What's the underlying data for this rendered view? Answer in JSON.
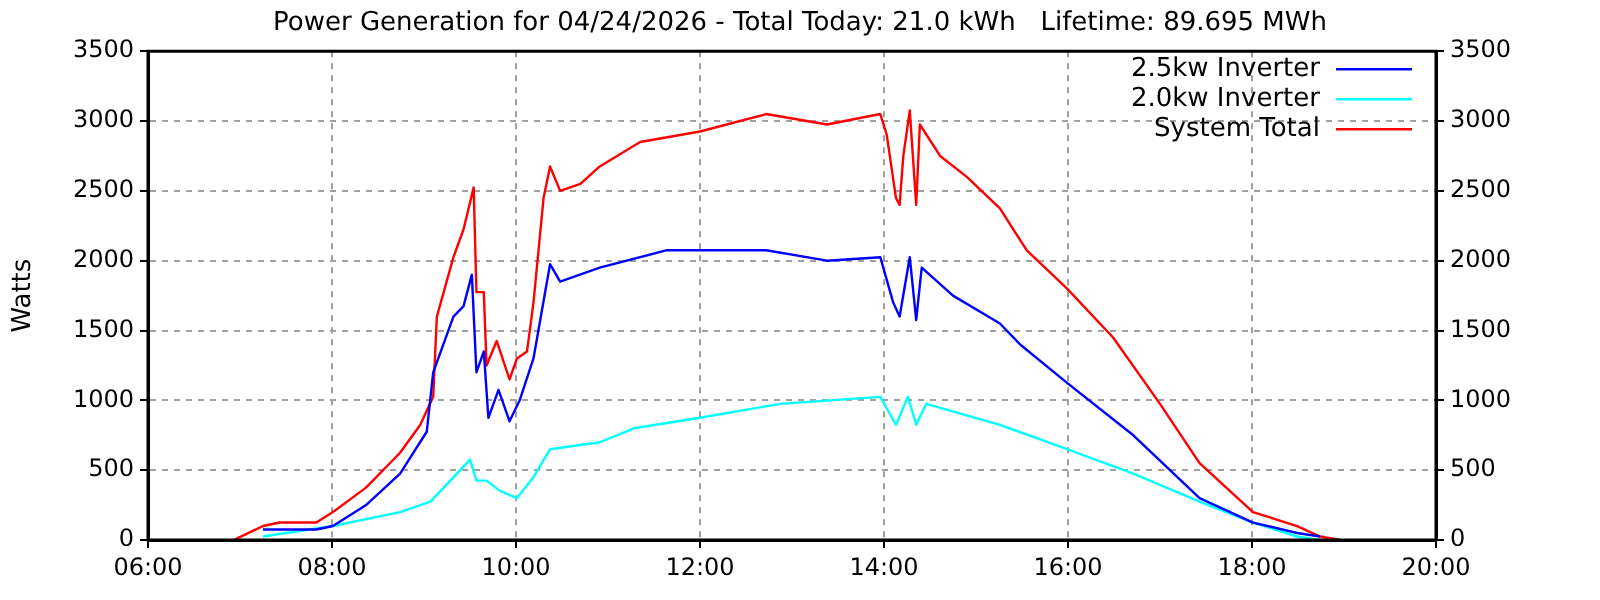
{
  "chart_data": {
    "type": "line",
    "title": "Power Generation for 04/24/2026 - Total Today: 21.0 kWh   Lifetime: 89.695 MWh",
    "ylabel": "Watts",
    "xlim": [
      6,
      20
    ],
    "xticks": [
      {
        "value": 6,
        "label": "06:00"
      },
      {
        "value": 8,
        "label": "08:00"
      },
      {
        "value": 10,
        "label": "10:00"
      },
      {
        "value": 12,
        "label": "12:00"
      },
      {
        "value": 14,
        "label": "14:00"
      },
      {
        "value": 16,
        "label": "16:00"
      },
      {
        "value": 18,
        "label": "18:00"
      },
      {
        "value": 20,
        "label": "20:00"
      }
    ],
    "ylim": [
      0,
      3500
    ],
    "yticks": [
      0,
      500,
      1000,
      1500,
      2000,
      2500,
      3000,
      3500
    ],
    "y2lim": [
      0,
      3500
    ],
    "y2ticks": [
      0,
      500,
      1000,
      1500,
      2000,
      2500,
      3000,
      3500
    ],
    "grid": true,
    "legend": "top right",
    "marker": "none",
    "line_style": "solid",
    "series": [
      {
        "name": "2.5kw Inverter",
        "color": "#0000ff",
        "x": [
          7.25,
          7.83,
          8.01,
          8.37,
          8.74,
          9.03,
          9.1,
          9.32,
          9.43,
          9.52,
          9.57,
          9.65,
          9.7,
          9.81,
          9.93,
          10.04,
          10.19,
          10.37,
          10.48,
          10.91,
          11.64,
          12.72,
          13.38,
          13.96,
          14.1,
          14.17,
          14.28,
          14.35,
          14.41,
          14.75,
          15.26,
          15.48,
          15.99,
          16.71,
          17.43,
          18.01,
          18.49,
          18.74
        ],
        "values": [
          75,
          75,
          100,
          250,
          475,
          775,
          1200,
          1600,
          1675,
          1900,
          1200,
          1350,
          875,
          1075,
          850,
          1000,
          1300,
          1975,
          1850,
          1950,
          2075,
          2075,
          2000,
          2025,
          1700,
          1600,
          2025,
          1575,
          1950,
          1750,
          1550,
          1400,
          1125,
          750,
          300,
          125,
          50,
          25
        ]
      },
      {
        "name": "2.0kw Inverter",
        "color": "#00ffff",
        "x": [
          7.25,
          8.01,
          8.74,
          9.07,
          9.25,
          9.5,
          9.57,
          9.68,
          9.83,
          10.01,
          10.19,
          10.37,
          10.91,
          11.28,
          12.0,
          12.87,
          13.96,
          14.13,
          14.26,
          14.35,
          14.46,
          15.26,
          15.99,
          16.71,
          17.43,
          18.01,
          18.49,
          18.74
        ],
        "values": [
          25,
          100,
          200,
          275,
          400,
          575,
          425,
          425,
          350,
          300,
          450,
          650,
          700,
          800,
          875,
          975,
          1025,
          825,
          1025,
          825,
          975,
          825,
          650,
          475,
          275,
          125,
          25,
          0
        ]
      },
      {
        "name": "System Total",
        "color": "#ff0000",
        "x": [
          6.93,
          7.25,
          7.43,
          7.83,
          8.01,
          8.37,
          8.74,
          8.96,
          9.1,
          9.14,
          9.32,
          9.43,
          9.54,
          9.57,
          9.65,
          9.68,
          9.79,
          9.93,
          10.01,
          10.12,
          10.19,
          10.3,
          10.37,
          10.48,
          10.7,
          10.91,
          11.35,
          12.0,
          12.72,
          13.38,
          13.96,
          14.03,
          14.13,
          14.17,
          14.21,
          14.28,
          14.35,
          14.39,
          14.61,
          14.9,
          15.26,
          15.55,
          15.99,
          16.49,
          17.0,
          17.43,
          18.01,
          18.49,
          18.74,
          18.96
        ],
        "values": [
          0,
          100,
          125,
          125,
          200,
          375,
          625,
          825,
          1025,
          1600,
          2025,
          2225,
          2525,
          1775,
          1775,
          1250,
          1425,
          1150,
          1300,
          1350,
          1700,
          2450,
          2675,
          2500,
          2550,
          2675,
          2850,
          2925,
          3050,
          2975,
          3050,
          2900,
          2450,
          2400,
          2750,
          3075,
          2400,
          2975,
          2750,
          2600,
          2375,
          2075,
          1800,
          1450,
          975,
          550,
          200,
          100,
          25,
          0
        ]
      }
    ]
  }
}
